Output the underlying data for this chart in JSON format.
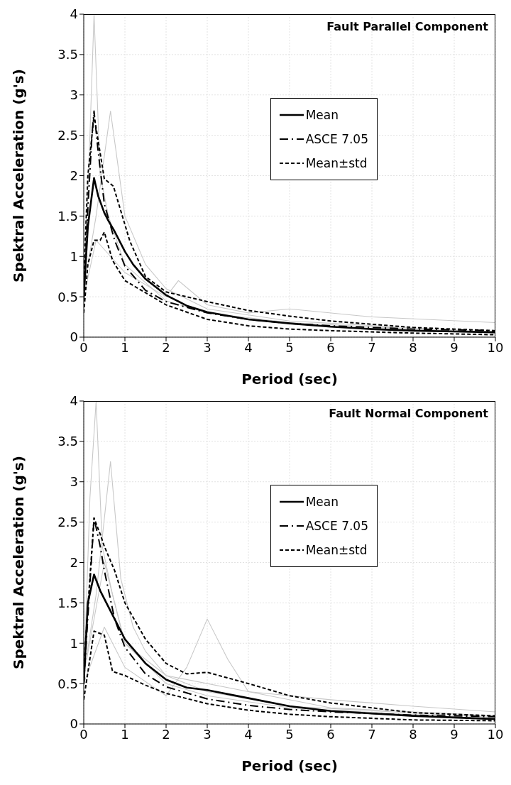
{
  "chart_data": [
    {
      "type": "line",
      "title": "Fault Parallel Component",
      "xlabel": "Period (sec)",
      "ylabel": "Spektral Acceleration (g's)",
      "xlim": [
        0,
        10
      ],
      "xticks": [
        0,
        1,
        2,
        3,
        4,
        5,
        6,
        7,
        8,
        9,
        10
      ],
      "ylim": [
        0,
        4
      ],
      "yticks": [
        0,
        0.5,
        1,
        1.5,
        2,
        2.5,
        3,
        3.5,
        4
      ],
      "grid": true,
      "legend": "top right",
      "series": [
        {
          "color": "#c8c8c8",
          "line_style": "solid",
          "x": [
            0,
            0.15,
            0.25,
            0.4,
            0.6,
            1,
            2,
            3,
            5,
            10
          ],
          "values": [
            0.5,
            2.5,
            4,
            2,
            1.5,
            0.9,
            0.45,
            0.3,
            0.18,
            0.05
          ]
        },
        {
          "color": "#c8c8c8",
          "line_style": "solid",
          "x": [
            0,
            0.3,
            0.65,
            1,
            1.5,
            2,
            3,
            5,
            10
          ],
          "values": [
            0.6,
            1.5,
            2.8,
            1.5,
            0.9,
            0.6,
            0.35,
            0.2,
            0.06
          ]
        },
        {
          "color": "#c8c8c8",
          "line_style": "solid",
          "x": [
            0,
            0.3,
            1,
            2,
            2.3,
            3,
            4,
            5,
            7,
            10
          ],
          "values": [
            0.5,
            1.2,
            0.8,
            0.5,
            0.7,
            0.4,
            0.3,
            0.35,
            0.25,
            0.18
          ]
        },
        {
          "name": "Mean",
          "color": "#000000",
          "line_style": "solid",
          "x": [
            0,
            0.1,
            0.25,
            0.35,
            0.5,
            0.6,
            0.75,
            1,
            1.2,
            1.5,
            2,
            2.5,
            3,
            4,
            5,
            6,
            7,
            8,
            9,
            10
          ],
          "values": [
            0.5,
            1.37,
            1.97,
            1.75,
            1.54,
            1.44,
            1.31,
            1.06,
            0.9,
            0.72,
            0.52,
            0.39,
            0.31,
            0.22,
            0.17,
            0.13,
            0.1,
            0.08,
            0.07,
            0.06
          ]
        },
        {
          "name": "ASCE 7.05",
          "color": "#000000",
          "line_style": "dashdot",
          "x": [
            0,
            0.1,
            0.2,
            0.25,
            0.35,
            0.5,
            0.75,
            1,
            1.5,
            2,
            3,
            4,
            5,
            6,
            8,
            10
          ],
          "values": [
            0.45,
            1.6,
            2.5,
            2.8,
            2.3,
            1.65,
            1.2,
            0.88,
            0.58,
            0.44,
            0.3,
            0.22,
            0.17,
            0.14,
            0.1,
            0.08
          ]
        },
        {
          "name": "Mean±std",
          "color": "#000000",
          "line_style": "dashed",
          "x": [
            0,
            0.1,
            0.25,
            0.5,
            0.72,
            1.12,
            1.5,
            2,
            3,
            4,
            5,
            6,
            7,
            8,
            10
          ],
          "values": [
            0.7,
            2,
            2.75,
            1.96,
            1.87,
            1.19,
            0.75,
            0.56,
            0.44,
            0.33,
            0.26,
            0.2,
            0.16,
            0.12,
            0.08
          ]
        },
        {
          "color": "#000000",
          "line_style": "dashed",
          "x": [
            0,
            0.1,
            0.25,
            0.4,
            0.5,
            0.7,
            1,
            1.5,
            2,
            3,
            4,
            5,
            6,
            8,
            10
          ],
          "values": [
            0.3,
            0.9,
            1.2,
            1.2,
            1.3,
            0.95,
            0.7,
            0.55,
            0.4,
            0.22,
            0.14,
            0.1,
            0.08,
            0.05,
            0.03
          ]
        }
      ]
    },
    {
      "type": "line",
      "title": "Fault Normal Component",
      "xlabel": "Period (sec)",
      "ylabel": "Spektral Acceleration (g's)",
      "xlim": [
        0,
        10
      ],
      "xticks": [
        0,
        1,
        2,
        3,
        4,
        5,
        6,
        7,
        8,
        9,
        10
      ],
      "ylim": [
        0,
        4
      ],
      "yticks": [
        0,
        0.5,
        1,
        1.5,
        2,
        2.5,
        3,
        3.5,
        4
      ],
      "grid": true,
      "legend": "top right",
      "series": [
        {
          "color": "#c8c8c8",
          "line_style": "solid",
          "x": [
            0,
            0.15,
            0.3,
            0.45,
            0.7,
            1,
            2,
            3,
            5,
            10
          ],
          "values": [
            0.5,
            2.8,
            4,
            2.2,
            1.6,
            1,
            0.5,
            0.35,
            0.2,
            0.06
          ]
        },
        {
          "color": "#c8c8c8",
          "line_style": "solid",
          "x": [
            0,
            0.3,
            0.65,
            0.9,
            1.2,
            1.5,
            2,
            3,
            5,
            10
          ],
          "values": [
            0.6,
            1.6,
            3.25,
            1.8,
            1.2,
            0.9,
            0.6,
            0.4,
            0.22,
            0.08
          ]
        },
        {
          "color": "#c8c8c8",
          "line_style": "solid",
          "x": [
            0,
            0.5,
            1,
            2,
            2.5,
            3,
            3.5,
            4,
            6,
            10
          ],
          "values": [
            0.5,
            1.2,
            0.7,
            0.35,
            0.7,
            1.3,
            0.8,
            0.4,
            0.2,
            0.1
          ]
        },
        {
          "color": "#c8c8c8",
          "line_style": "solid",
          "x": [
            0,
            0.5,
            1,
            2,
            4,
            6,
            8,
            10
          ],
          "values": [
            0.6,
            2,
            1,
            0.6,
            0.4,
            0.3,
            0.22,
            0.15
          ]
        },
        {
          "name": "Mean",
          "color": "#000000",
          "line_style": "solid",
          "x": [
            0,
            0.1,
            0.25,
            0.4,
            0.6,
            0.75,
            1,
            1.5,
            2,
            2.5,
            3,
            4,
            5,
            6,
            8,
            10
          ],
          "values": [
            0.5,
            1.5,
            1.85,
            1.65,
            1.45,
            1.3,
            1.05,
            0.75,
            0.55,
            0.45,
            0.42,
            0.32,
            0.22,
            0.16,
            0.1,
            0.06
          ]
        },
        {
          "name": "ASCE 7.05",
          "color": "#000000",
          "line_style": "dashdot",
          "x": [
            0,
            0.25,
            0.4,
            0.5,
            0.75,
            1,
            1.5,
            2,
            3,
            4,
            5,
            6,
            8,
            10
          ],
          "values": [
            0.5,
            2.55,
            2.2,
            1.9,
            1.3,
            0.95,
            0.62,
            0.46,
            0.31,
            0.23,
            0.18,
            0.15,
            0.11,
            0.09
          ]
        },
        {
          "name": "Mean±std",
          "color": "#000000",
          "line_style": "dashed",
          "x": [
            0,
            0.25,
            0.4,
            0.5,
            0.75,
            1,
            1.5,
            2,
            2.5,
            3,
            4,
            5,
            6,
            8,
            10
          ],
          "values": [
            0.7,
            2.55,
            2.35,
            2.2,
            1.9,
            1.5,
            1.05,
            0.75,
            0.62,
            0.64,
            0.5,
            0.35,
            0.26,
            0.14,
            0.1
          ]
        },
        {
          "color": "#000000",
          "line_style": "dashed",
          "x": [
            0,
            0.25,
            0.5,
            0.7,
            1,
            1.5,
            2,
            3,
            4,
            5,
            6,
            8,
            10
          ],
          "values": [
            0.3,
            1.15,
            1.1,
            0.65,
            0.6,
            0.48,
            0.38,
            0.25,
            0.17,
            0.12,
            0.09,
            0.05,
            0.04
          ]
        }
      ]
    }
  ]
}
